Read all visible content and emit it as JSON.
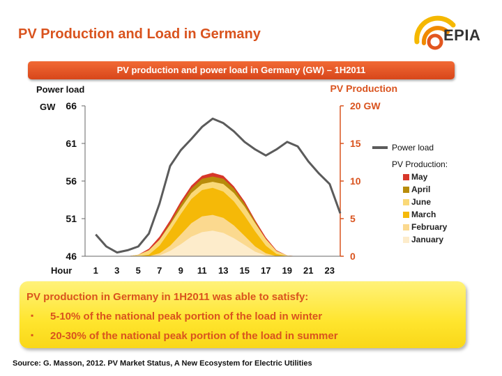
{
  "header": {
    "title": "PV Production and Load in Germany",
    "logo_text": "EPIA"
  },
  "chart_data": {
    "type": "line",
    "title": "PV production and power load in Germany (GW) – 1H2011",
    "left_axis": {
      "title": "Power load",
      "unit": "GW",
      "min": 46,
      "max": 66,
      "ticks": [
        "46",
        "51",
        "56",
        "61",
        "66"
      ]
    },
    "right_axis": {
      "title": "PV Production",
      "min": 0,
      "max": 20,
      "ticks": [
        "0",
        "5",
        "10",
        "15",
        "20 GW"
      ]
    },
    "x_axis": {
      "title": "Hour",
      "min": 0,
      "max": 24,
      "tick_values": [
        1,
        3,
        5,
        7,
        9,
        11,
        13,
        15,
        17,
        19,
        21,
        23
      ],
      "ticks": [
        "1",
        "3",
        "5",
        "7",
        "9",
        "11",
        "13",
        "15",
        "17",
        "19",
        "21",
        "23"
      ]
    },
    "x": [
      1,
      2,
      3,
      4,
      5,
      6,
      7,
      8,
      9,
      10,
      11,
      12,
      13,
      14,
      15,
      16,
      17,
      18,
      19,
      20,
      21,
      22,
      23,
      24
    ],
    "load": {
      "name": "Power load",
      "axis": "left",
      "color": "#5b5b5b",
      "values": [
        48.9,
        47.3,
        46.5,
        46.8,
        47.3,
        49.0,
        53.0,
        58.0,
        60.1,
        61.6,
        63.2,
        64.3,
        63.7,
        62.6,
        61.2,
        60.2,
        59.4,
        60.2,
        61.2,
        60.6,
        58.6,
        57.0,
        55.6,
        51.7
      ]
    },
    "pv_legend_title": "PV Production:",
    "pv_series": [
      {
        "name": "May",
        "color": "#d7372a",
        "values": [
          0,
          0,
          0,
          0,
          0.2,
          1.0,
          2.6,
          4.8,
          7.3,
          9.4,
          10.7,
          11.1,
          10.7,
          9.3,
          7.3,
          4.8,
          2.5,
          0.8,
          0.1,
          0,
          0,
          0,
          0,
          0
        ]
      },
      {
        "name": "April",
        "color": "#b88c0a",
        "values": [
          0,
          0,
          0,
          0,
          0,
          0.6,
          2.2,
          4.4,
          6.9,
          9.0,
          10.3,
          10.6,
          10.3,
          9.0,
          7.0,
          4.6,
          2.2,
          0.6,
          0,
          0,
          0,
          0,
          0,
          0
        ]
      },
      {
        "name": "June",
        "color": "#fad978",
        "values": [
          0,
          0,
          0,
          0,
          0.2,
          0.8,
          2.2,
          4.2,
          6.4,
          8.4,
          9.6,
          9.9,
          9.6,
          8.4,
          6.6,
          4.4,
          2.3,
          0.7,
          0.1,
          0,
          0,
          0,
          0,
          0
        ]
      },
      {
        "name": "March",
        "color": "#f5b908",
        "values": [
          0,
          0,
          0,
          0,
          0,
          0.2,
          1.4,
          3.4,
          5.6,
          7.6,
          8.8,
          9.1,
          8.6,
          7.3,
          5.4,
          3.3,
          1.4,
          0.3,
          0,
          0,
          0,
          0,
          0,
          0
        ]
      },
      {
        "name": "February",
        "color": "#fbd98f",
        "values": [
          0,
          0,
          0,
          0,
          0,
          0,
          0.4,
          1.4,
          2.9,
          4.4,
          5.3,
          5.5,
          5.1,
          4.1,
          2.7,
          1.3,
          0.4,
          0,
          0,
          0,
          0,
          0,
          0,
          0
        ]
      },
      {
        "name": "January",
        "color": "#fdeccb",
        "values": [
          0,
          0,
          0,
          0,
          0,
          0,
          0.1,
          0.7,
          1.6,
          2.6,
          3.2,
          3.4,
          3.1,
          2.4,
          1.5,
          0.6,
          0.1,
          0,
          0,
          0,
          0,
          0,
          0,
          0
        ]
      }
    ],
    "grid": false,
    "legend_placement": "right"
  },
  "callout": {
    "heading": "PV production in Germany in 1H2011 was able to satisfy:",
    "bullet_glyph": "▪",
    "items": [
      "5-10% of the national peak portion of the load in winter",
      "20-30% of the national peak portion of the load in summer"
    ]
  },
  "source": "Source: G. Masson, 2012. PV Market Status, A New Ecosystem for Electric Utilities"
}
